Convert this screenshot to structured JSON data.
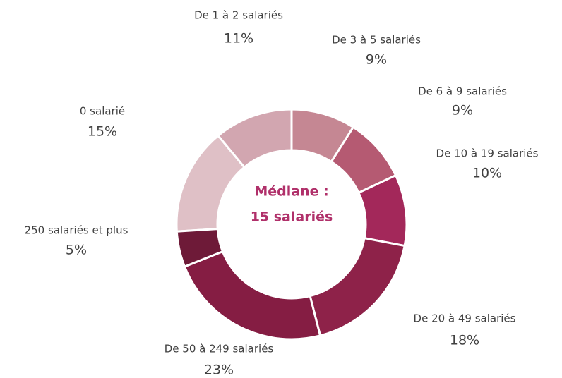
{
  "chart_data": {
    "type": "donut",
    "center_label": [
      "Médiane :",
      "15 salariés"
    ],
    "categories": [
      "0 salarié",
      "De 1 à 2 salariés",
      "De 3 à 5 salariés",
      "De 6 à 9 salariés",
      "De 10 à 19 salariés",
      "De 20 à 49 salariés",
      "De 50 à 249 salariés",
      "250 salariés et plus"
    ],
    "values": [
      15,
      11,
      9,
      9,
      10,
      18,
      23,
      5
    ],
    "value_labels": [
      "15%",
      "11%",
      "9%",
      "9%",
      "10%",
      "18%",
      "23%",
      "5%"
    ],
    "colors": [
      "#dfc0c6",
      "#d2a6b0",
      "#c58793",
      "#b55a72",
      "#a3285a",
      "#8e2249",
      "#851d43",
      "#6e1a38"
    ]
  }
}
